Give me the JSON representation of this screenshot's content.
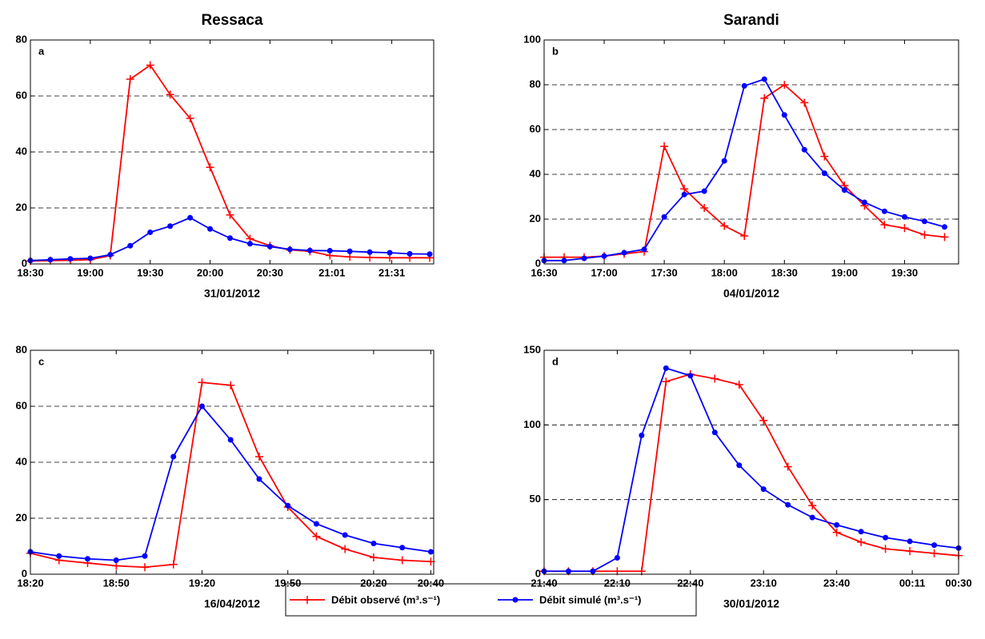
{
  "chart_data": [
    {
      "type": "line",
      "title": "Ressaca",
      "panel_label": "a",
      "xlabel": "31/01/2012",
      "x": [
        "18:30",
        "18:40",
        "18:50",
        "19:00",
        "19:10",
        "19:20",
        "19:30",
        "19:40",
        "19:50",
        "20:00",
        "20:10",
        "20:20",
        "20:30",
        "20:40",
        "20:50",
        "21:00",
        "21:10",
        "21:20",
        "21:30",
        "21:40",
        "21:50"
      ],
      "xlim": [
        "18:30",
        "21:52"
      ],
      "xticks": [
        "18:30",
        "19:00",
        "19:30",
        "20:00",
        "20:30",
        "21:01",
        "21:31"
      ],
      "ylim": [
        0,
        80
      ],
      "yticks": [
        0,
        20,
        40,
        60,
        80
      ],
      "grid": true,
      "series": [
        {
          "name": "Débit observé (m³.s⁻¹)",
          "color": "#ff0000",
          "marker": "plus",
          "values": [
            1,
            1.2,
            1.3,
            1.5,
            3,
            66,
            71,
            60.5,
            52,
            34.5,
            17.5,
            9,
            6.5,
            5,
            4.5,
            3,
            2.5,
            2.3,
            2.2,
            2.2,
            2.2
          ]
        },
        {
          "name": "Débit simulé (m³.s⁻¹)",
          "color": "#0000ff",
          "marker": "dot",
          "values": [
            1.2,
            1.5,
            1.8,
            2,
            3.3,
            6.5,
            11.3,
            13.5,
            16.5,
            12.5,
            9.2,
            7.2,
            6.2,
            5.2,
            4.8,
            4.7,
            4.5,
            4.2,
            4,
            3.6,
            3.5
          ]
        }
      ]
    },
    {
      "type": "line",
      "title": "Sarandi",
      "panel_label": "b",
      "xlabel": "04/01/2012",
      "x": [
        "16:30",
        "16:40",
        "16:50",
        "17:00",
        "17:10",
        "17:20",
        "17:30",
        "17:40",
        "17:50",
        "18:00",
        "18:10",
        "18:20",
        "18:30",
        "18:40",
        "18:50",
        "19:00",
        "19:10",
        "19:20",
        "19:30",
        "19:40",
        "19:50"
      ],
      "xlim": [
        "16:30",
        "19:57"
      ],
      "xticks": [
        "16:30",
        "17:00",
        "17:30",
        "18:00",
        "18:30",
        "19:00",
        "19:30"
      ],
      "ylim": [
        0,
        100
      ],
      "yticks": [
        0,
        20,
        40,
        60,
        80,
        100
      ],
      "grid": true,
      "series": [
        {
          "name": "Débit observé (m³.s⁻¹)",
          "color": "#ff0000",
          "marker": "plus",
          "values": [
            3,
            3,
            3,
            3.5,
            4.5,
            5.5,
            52.5,
            33.5,
            25,
            17,
            12.5,
            74,
            80,
            72,
            48,
            35,
            26,
            17.5,
            16,
            13,
            12
          ]
        },
        {
          "name": "Débit simulé (m³.s⁻¹)",
          "color": "#0000ff",
          "marker": "dot",
          "values": [
            1.5,
            1.5,
            2.5,
            3.5,
            5,
            6.5,
            21,
            31,
            32.5,
            46,
            79.5,
            82.5,
            66.5,
            51,
            40.5,
            33,
            27.5,
            23.5,
            21,
            19,
            16.5
          ]
        }
      ]
    },
    {
      "type": "line",
      "panel_label": "c",
      "xlabel": "16/04/2012",
      "x": [
        "18:20",
        "18:30",
        "18:40",
        "18:50",
        "19:00",
        "19:10",
        "19:20",
        "19:30",
        "19:40",
        "19:50",
        "20:00",
        "20:10",
        "20:20",
        "20:30",
        "20:40"
      ],
      "xlim": [
        "18:20",
        "20:41"
      ],
      "xticks": [
        "18:20",
        "18:50",
        "19:20",
        "19:50",
        "20:20",
        "20:40"
      ],
      "ylim": [
        0,
        80
      ],
      "yticks": [
        0,
        20,
        40,
        60,
        80
      ],
      "grid": true,
      "series": [
        {
          "name": "Débit observé (m³.s⁻¹)",
          "color": "#ff0000",
          "marker": "plus",
          "values": [
            7.5,
            5,
            4,
            3,
            2.5,
            3.5,
            68.5,
            67.5,
            42,
            24,
            13.5,
            9,
            6,
            5,
            4.5
          ]
        },
        {
          "name": "Débit simulé (m³.s⁻¹)",
          "color": "#0000ff",
          "marker": "dot",
          "values": [
            8,
            6.5,
            5.5,
            5,
            6.5,
            42,
            60,
            48,
            34,
            24.5,
            18,
            14,
            11,
            9.5,
            8
          ]
        }
      ]
    },
    {
      "type": "line",
      "panel_label": "d",
      "xlabel": "30/01/2012",
      "x": [
        "21:40",
        "21:50",
        "22:00",
        "22:10",
        "22:20",
        "22:30",
        "22:40",
        "22:50",
        "23:00",
        "23:10",
        "23:20",
        "23:30",
        "23:40",
        "23:50",
        "00:00",
        "00:10",
        "00:20",
        "00:30"
      ],
      "xlim": [
        "21:40",
        "00:30"
      ],
      "xticks": [
        "21:40",
        "22:10",
        "22:40",
        "23:10",
        "23:40",
        "00:11",
        "00:30"
      ],
      "ylim": [
        0,
        150
      ],
      "yticks": [
        0,
        50,
        100,
        150
      ],
      "grid": true,
      "series": [
        {
          "name": "Débit observé (m³.s⁻¹)",
          "color": "#ff0000",
          "marker": "plus",
          "values": [
            2,
            2,
            2,
            2,
            2,
            129,
            134,
            131,
            127,
            103,
            72,
            46,
            28,
            21.5,
            17,
            15.5,
            14,
            12.5
          ]
        },
        {
          "name": "Débit simulé (m³.s⁻¹)",
          "color": "#0000ff",
          "marker": "dot",
          "values": [
            2,
            2,
            2,
            11,
            93,
            138,
            133,
            95,
            73,
            57,
            46.5,
            38,
            33,
            28.5,
            24.5,
            22,
            19.5,
            17.5
          ]
        }
      ]
    }
  ]
}
